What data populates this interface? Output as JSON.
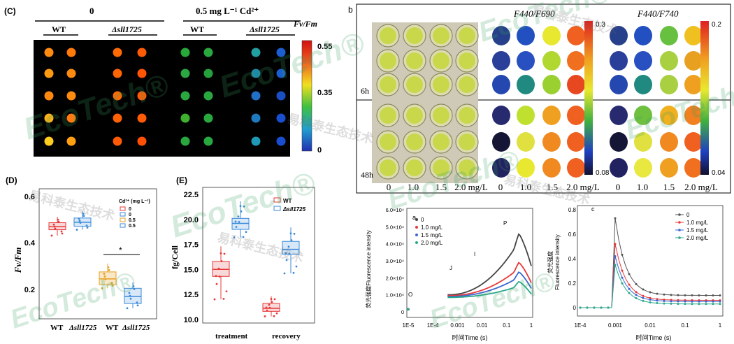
{
  "panelC": {
    "label": "(C)",
    "group0": "0",
    "groupCd": "0.5 mg L⁻¹ Cd²⁺",
    "wt": "WT",
    "mut": "Δsll1725",
    "metric": "Fv/Fm",
    "scale": [
      "0.55",
      "0.35",
      "0"
    ],
    "rows": [
      [
        "#ff8a10",
        "#ff7a08",
        "#ff6a05",
        "#ff5a05",
        "#27a83a",
        "#2aa83f",
        "#20a0a0",
        "#1a5ed0"
      ],
      [
        "#ff9a12",
        "#ff8a10",
        "#ff6405",
        "#ff5505",
        "#2ca842",
        "#26a03c",
        "#1e8aa8",
        "#1a5ed0"
      ],
      [
        "#ff8810",
        "#ff8a10",
        "#ff6a05",
        "#ff5a05",
        "#2aa840",
        "#2aa840",
        "#2070c8",
        "#1a4fc4"
      ],
      [
        "#ffb218",
        "#ff7a10",
        "#ff6205",
        "#ff5a05",
        "#40b02f",
        "#2aa840",
        "#1e7ac0",
        "#1a4ed0"
      ],
      [
        "#ffcc20",
        "#ffa010",
        "#ff5a05",
        "#ff5005",
        "#2aa840",
        "#28a840",
        "#1e9ab8",
        "#1a4ed0"
      ]
    ]
  },
  "panelB": {
    "label": "b",
    "title1": "F440/F690",
    "title2": "F440/F740",
    "scale1": [
      "0.3",
      "0.08"
    ],
    "scale2": [
      "0.2",
      "0.04"
    ],
    "time6": "6h",
    "time48": "48h",
    "xticks": [
      "0",
      "1.0",
      "1.5",
      "2.0 mg/L"
    ],
    "dots1": [
      [
        "#27408b",
        "#2250c0",
        "#e8e830",
        "#f06020"
      ],
      [
        "#2a3f9a",
        "#2850c0",
        "#b0d830",
        "#f07020"
      ],
      [
        "#2448b0",
        "#208a80",
        "#9ad030",
        "#e84820"
      ],
      [
        "#282a70",
        "#c0e030",
        "#f0a020",
        "#f06020"
      ],
      [
        "#151535",
        "#e0e040",
        "#f08a20",
        "#f06020"
      ],
      [
        "#222260",
        "#e8e830",
        "#f08a20",
        "#f06020"
      ]
    ],
    "dots2": [
      [
        "#27408b",
        "#2250c0",
        "#68c040",
        "#f0c020"
      ],
      [
        "#2a3f9a",
        "#2850c0",
        "#a8d040",
        "#e8a020"
      ],
      [
        "#2448b0",
        "#208a80",
        "#a8d040",
        "#f0a020"
      ],
      [
        "#282a70",
        "#70c040",
        "#f0b020",
        "#f08020"
      ],
      [
        "#151535",
        "#e0e040",
        "#f08a20",
        "#f06020"
      ],
      [
        "#222260",
        "#e8e840",
        "#f0a020",
        "#f07020"
      ]
    ]
  },
  "panelD": {
    "label": "(D)",
    "ylabel": "Fv/Fm",
    "yticks": [
      "0.6",
      "0.4",
      "0.2"
    ],
    "xticks": [
      "WT",
      "Δsll1725",
      "WT",
      "Δsll1725"
    ],
    "legendTitle": "Cd²⁺ (mg L⁻¹)",
    "legend": [
      "0",
      "0",
      "0.5",
      "0.5"
    ],
    "sig": "*"
  },
  "panelE": {
    "label": "(E)",
    "ylabel": "fg/Cell",
    "yticks": [
      "22.5",
      "20.0",
      "17.5",
      "15.0",
      "12.5",
      "10.0"
    ],
    "xticks": [
      "treatment",
      "recovery"
    ],
    "legend": [
      "WT",
      "Δsll1725"
    ]
  },
  "panelOJIP": {
    "label": "a",
    "ylabel": "荧光强度Fluorescence intensity",
    "xlabel": "时间Time (s)",
    "yticks": [
      "6.0×10⁴",
      "5.0×10⁴",
      "4.0×10⁴",
      "3.0×10⁴",
      "2.0×10⁴",
      "1.0×10⁴",
      "0"
    ],
    "xticks": [
      "1E-5",
      "1E-4",
      "0.001",
      "0.01",
      "0.1",
      "1"
    ],
    "legend": [
      "0",
      "1.0 mg/L",
      "1.5 mg/L",
      "2.0 mg/L"
    ],
    "points": [
      "O",
      "J",
      "I",
      "P"
    ]
  },
  "panelKin": {
    "label": "c",
    "ylabel1": "荧光强度",
    "ylabel2": "Fluorescence intensity",
    "xlabel": "时间Time (s)",
    "yticks": [
      "0.8",
      "0.6",
      "0.4",
      "0.2",
      "0"
    ],
    "xticks": [
      "1E-4",
      "0.001",
      "0.01",
      "0.1",
      "1"
    ],
    "legend": [
      "0",
      "1.0 mg/L",
      "1.5 mg/L",
      "2.0 mg/L"
    ],
    "colors": [
      "#555555",
      "#e8393a",
      "#3a68d0",
      "#2aa88a"
    ]
  },
  "watermark": {
    "brand": "EcoTech®",
    "cn": "易科泰生态技术"
  }
}
